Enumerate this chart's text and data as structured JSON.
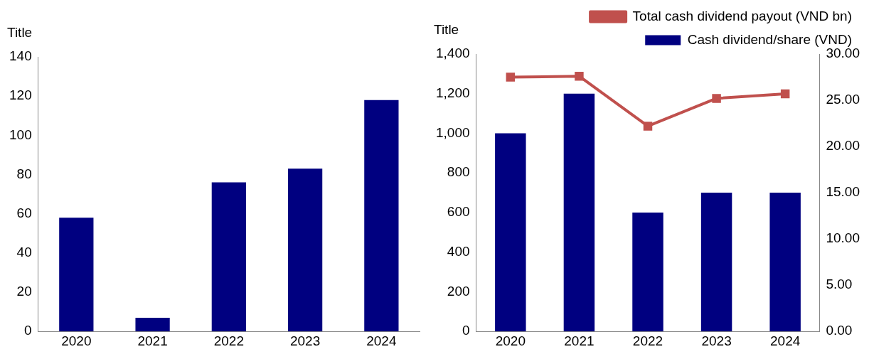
{
  "chart_data": [
    {
      "type": "bar",
      "ylabel": "Title",
      "categories": [
        "2020",
        "2021",
        "2022",
        "2023",
        "2024"
      ],
      "series": [
        {
          "color": "#000080",
          "values": [
            58,
            7,
            76,
            83,
            118
          ]
        }
      ],
      "ylim": [
        0,
        140
      ],
      "yticks": [
        0,
        20,
        40,
        60,
        80,
        100,
        120,
        140
      ],
      "grid": false,
      "legend": false
    },
    {
      "type": "bar",
      "ylabel": "Title",
      "categories": [
        "2020",
        "2021",
        "2022",
        "2023",
        "2024"
      ],
      "series": [
        {
          "name": "Cash dividend/share (VND)",
          "color": "#000080",
          "values": [
            1000,
            1200,
            600,
            700,
            700
          ]
        },
        {
          "name": "Total cash dividend payout (VND bn)",
          "type": "line",
          "axis": "y2",
          "color": "#c0504d",
          "values": [
            27.5,
            27.6,
            22.2,
            25.2,
            25.7
          ],
          "marker": "square",
          "line_style": "solid"
        }
      ],
      "ylim": [
        0,
        1400
      ],
      "yticks": [
        0,
        200,
        400,
        600,
        800,
        {
          "value": 1000,
          "label": "1,000"
        },
        {
          "value": 1200,
          "label": "1,200"
        },
        {
          "value": 1400,
          "label": "1,400"
        }
      ],
      "y2lim": [
        0,
        30
      ],
      "y2ticks": [
        {
          "value": 0,
          "label": "0.00"
        },
        {
          "value": 5,
          "label": "5.00"
        },
        {
          "value": 10,
          "label": "10.00"
        },
        {
          "value": 15,
          "label": "15.00"
        },
        {
          "value": 20,
          "label": "20.00"
        },
        {
          "value": 25,
          "label": "25.00"
        },
        {
          "value": 30,
          "label": "30.00"
        }
      ],
      "grid": false,
      "legend": "top right"
    }
  ]
}
